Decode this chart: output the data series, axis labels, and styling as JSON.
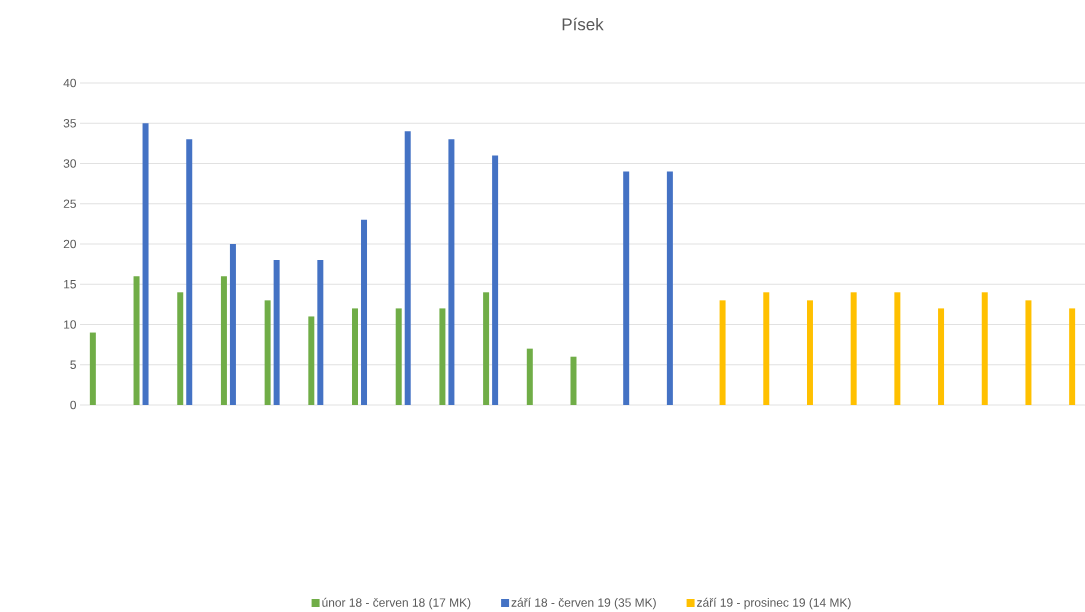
{
  "chart_data": {
    "type": "bar",
    "title": "Písek",
    "categories": [
      null,
      null,
      null,
      null,
      null,
      null,
      null,
      null,
      null,
      null,
      null,
      null,
      null,
      null,
      null,
      null,
      null,
      null,
      null,
      null,
      null,
      null,
      null
    ],
    "series": [
      {
        "name": "únor 18 - červen 18 (17 MK)",
        "color": "#70ad47",
        "values": [
          9,
          16,
          14,
          16,
          13,
          11,
          12,
          12,
          12,
          14,
          7,
          6,
          null,
          null,
          null,
          null,
          null,
          null,
          null,
          null,
          null,
          null,
          null
        ]
      },
      {
        "name": "září 18 - červen 19 (35 MK)",
        "color": "#4472c4",
        "values": [
          null,
          35,
          33,
          20,
          18,
          18,
          23,
          34,
          33,
          31,
          null,
          null,
          29,
          29,
          null,
          null,
          null,
          null,
          null,
          null,
          null,
          null,
          null
        ]
      },
      {
        "name": "září 19 - prosinec 19  (14 MK)",
        "color": "#ffc000",
        "values": [
          null,
          null,
          null,
          null,
          null,
          null,
          null,
          null,
          null,
          null,
          null,
          null,
          null,
          null,
          13,
          14,
          13,
          14,
          14,
          12,
          14,
          13,
          12
        ]
      }
    ],
    "ylim": [
      0,
      40
    ],
    "yticks": [
      0,
      5,
      10,
      15,
      20,
      25,
      30,
      35,
      40
    ],
    "grid": "y",
    "legend": "bottom",
    "tick_labels": "y"
  }
}
